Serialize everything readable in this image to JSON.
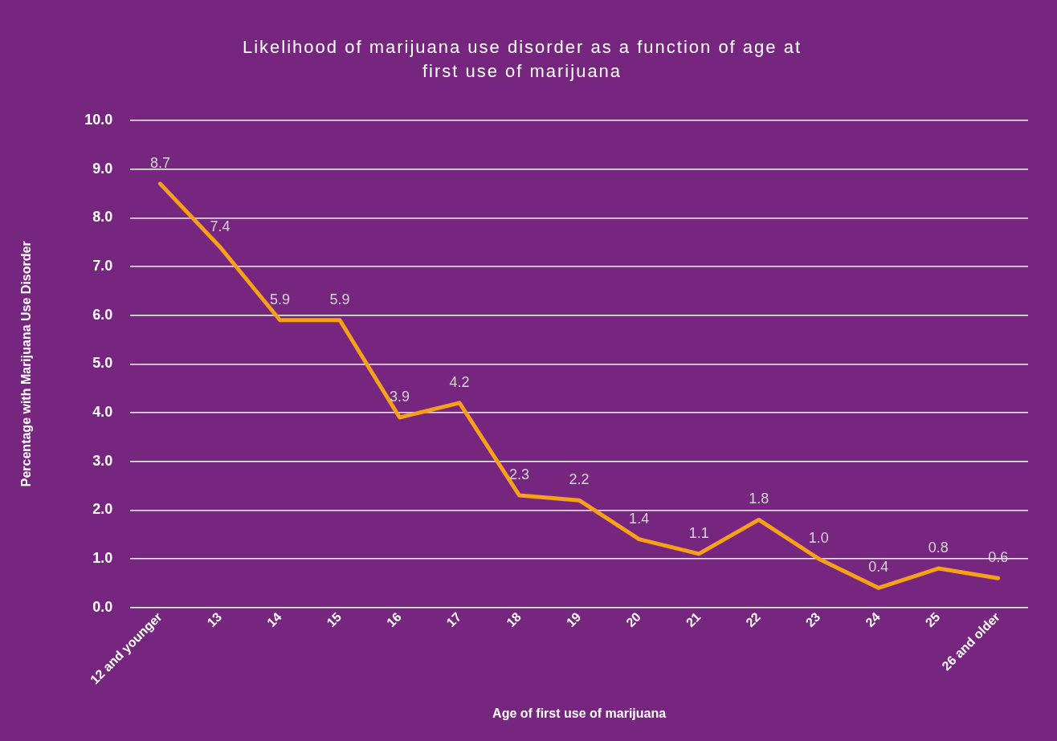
{
  "chart_data": {
    "type": "line",
    "title": "Likelihood of marijuana use disorder as a function of age at first use of marijuana",
    "xlabel": "Age of first use of marijuana",
    "ylabel": "Percentage with Marijuana Use Disorder",
    "categories": [
      "12 and younger",
      "13",
      "14",
      "15",
      "16",
      "17",
      "18",
      "19",
      "20",
      "21",
      "22",
      "23",
      "24",
      "25",
      "26 and older"
    ],
    "series": [
      {
        "color": "#f7a11a",
        "values": [
          8.7,
          7.4,
          5.9,
          5.9,
          3.9,
          4.2,
          2.3,
          2.2,
          1.4,
          1.1,
          1.8,
          1.0,
          0.4,
          0.8,
          0.6
        ]
      }
    ],
    "ylim": [
      0,
      10
    ],
    "yticks": [
      {
        "value": 0,
        "label": "0.0"
      },
      {
        "value": 1,
        "label": "1.0"
      },
      {
        "value": 2,
        "label": "2.0"
      },
      {
        "value": 3,
        "label": "3.0"
      },
      {
        "value": 4,
        "label": "4.0"
      },
      {
        "value": 5,
        "label": "5.0"
      },
      {
        "value": 6,
        "label": "6.0"
      },
      {
        "value": 7,
        "label": "7.0"
      },
      {
        "value": 8,
        "label": "8.0"
      },
      {
        "value": 9,
        "label": "9.0"
      },
      {
        "value": 10,
        "label": "10.0"
      }
    ],
    "grid": "y",
    "legend": false,
    "marker": "none",
    "line_style": "solid",
    "value_labels": [
      "8.7",
      "7.4",
      "5.9",
      "5.9",
      "3.9",
      "4.2",
      "2.3",
      "2.2",
      "1.4",
      "1.1",
      "1.8",
      "1.0",
      "0.4",
      "0.8",
      "0.6"
    ]
  }
}
